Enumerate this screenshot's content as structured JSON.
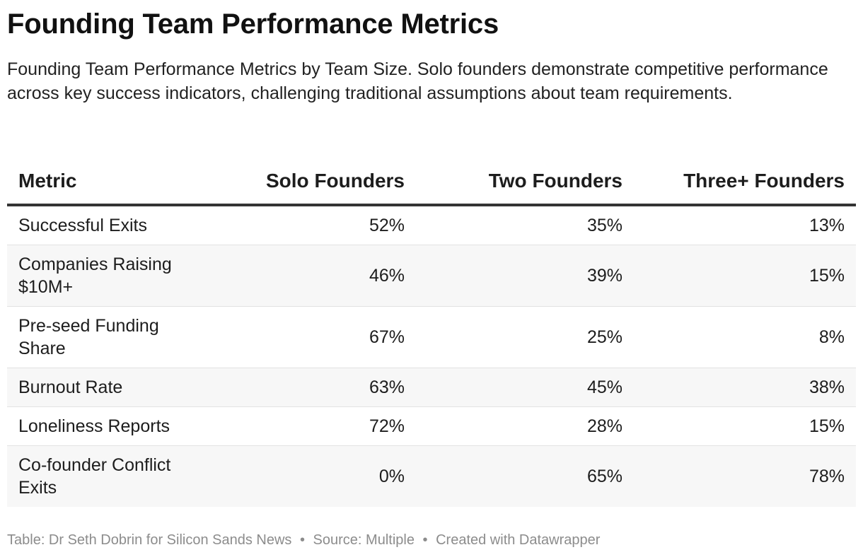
{
  "title": "Founding Team Performance Metrics",
  "subtitle": "Founding Team Performance Metrics by Team Size. Solo founders demonstrate competitive performance across key success indicators, challenging traditional assumptions about team requirements.",
  "table": {
    "headers": [
      "Metric",
      "Solo Founders",
      "Two Founders",
      "Three+ Founders"
    ],
    "rows": [
      [
        "Successful Exits",
        "52%",
        "35%",
        "13%"
      ],
      [
        "Companies Raising $10M+",
        "46%",
        "39%",
        "15%"
      ],
      [
        "Pre-seed Funding Share",
        "67%",
        "25%",
        "8%"
      ],
      [
        "Burnout Rate",
        "63%",
        "45%",
        "38%"
      ],
      [
        "Loneliness Reports",
        "72%",
        "28%",
        "15%"
      ],
      [
        "Co-founder Conflict Exits",
        "0%",
        "65%",
        "78%"
      ]
    ]
  },
  "footer": {
    "credit": "Table: Dr Seth Dobrin for Silicon Sands News",
    "source": "Source: Multiple",
    "tool": "Created with Datawrapper",
    "separator": "•"
  }
}
